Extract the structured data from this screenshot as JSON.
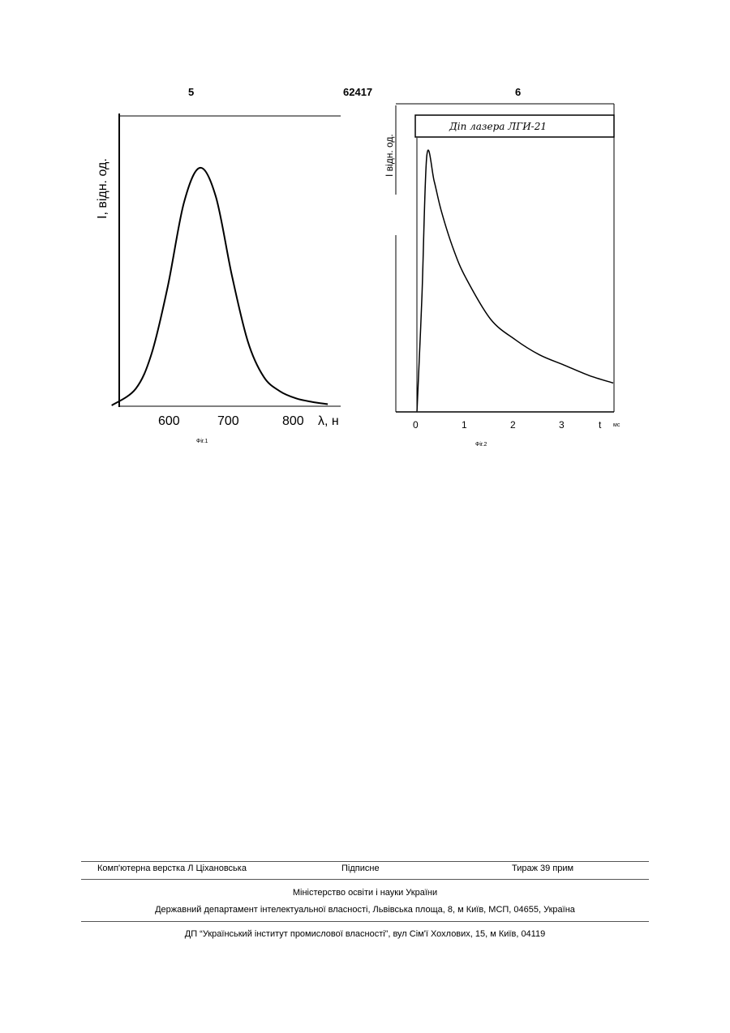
{
  "header": {
    "page_left": "5",
    "patent_number": "62417",
    "page_right": "6"
  },
  "figures": [
    {
      "caption": "Фіг.1",
      "chart_data": {
        "type": "line",
        "ylabel": "I, відн. од.",
        "xlabel": "λ, н",
        "x_ticks": [
          "600",
          "700",
          "800"
        ],
        "xlim": [
          530,
          830
        ],
        "series": [
          {
            "x": [
              550,
              580,
              600,
              620,
              640,
              660,
              680,
              700,
              720,
              740,
              760,
              780,
              800,
              820
            ],
            "y": [
              0.0,
              0.07,
              0.22,
              0.5,
              0.85,
              1.0,
              0.88,
              0.55,
              0.27,
              0.12,
              0.06,
              0.03,
              0.015,
              0.005
            ]
          }
        ]
      }
    },
    {
      "caption": "Фіг.2",
      "chart_data": {
        "type": "line",
        "ylabel": "I відн. од.",
        "xlabel": "t",
        "x_unit": "мс",
        "legend_box": "Діп лазера ЛГИ-21",
        "x_ticks": [
          "0",
          "1",
          "2",
          "3"
        ],
        "xlim": [
          -0.3,
          4.0
        ],
        "series": [
          {
            "x": [
              0.0,
              0.1,
              0.2,
              0.35,
              0.5,
              0.75,
              1.0,
              1.5,
              2.0,
              2.5,
              3.0,
              3.5,
              4.0
            ],
            "y": [
              0.0,
              0.45,
              1.0,
              0.9,
              0.78,
              0.63,
              0.52,
              0.36,
              0.28,
              0.22,
              0.18,
              0.14,
              0.11
            ]
          }
        ]
      }
    }
  ],
  "footer": {
    "typesetter": "Комп'ютерна верстка Л  Ціхановська",
    "signed": "Підписне",
    "circulation": "Тираж 39 прим",
    "ministry": "Міністерство освіти і науки України",
    "department": "Державний департамент інтелектуальної власності, Львівська площа, 8, м  Київ, МСП, 04655, Україна",
    "institute": "ДП “Український інститут промислової власності”, вул  Сім'ї Хохлових, 15, м  Київ, 04119"
  }
}
